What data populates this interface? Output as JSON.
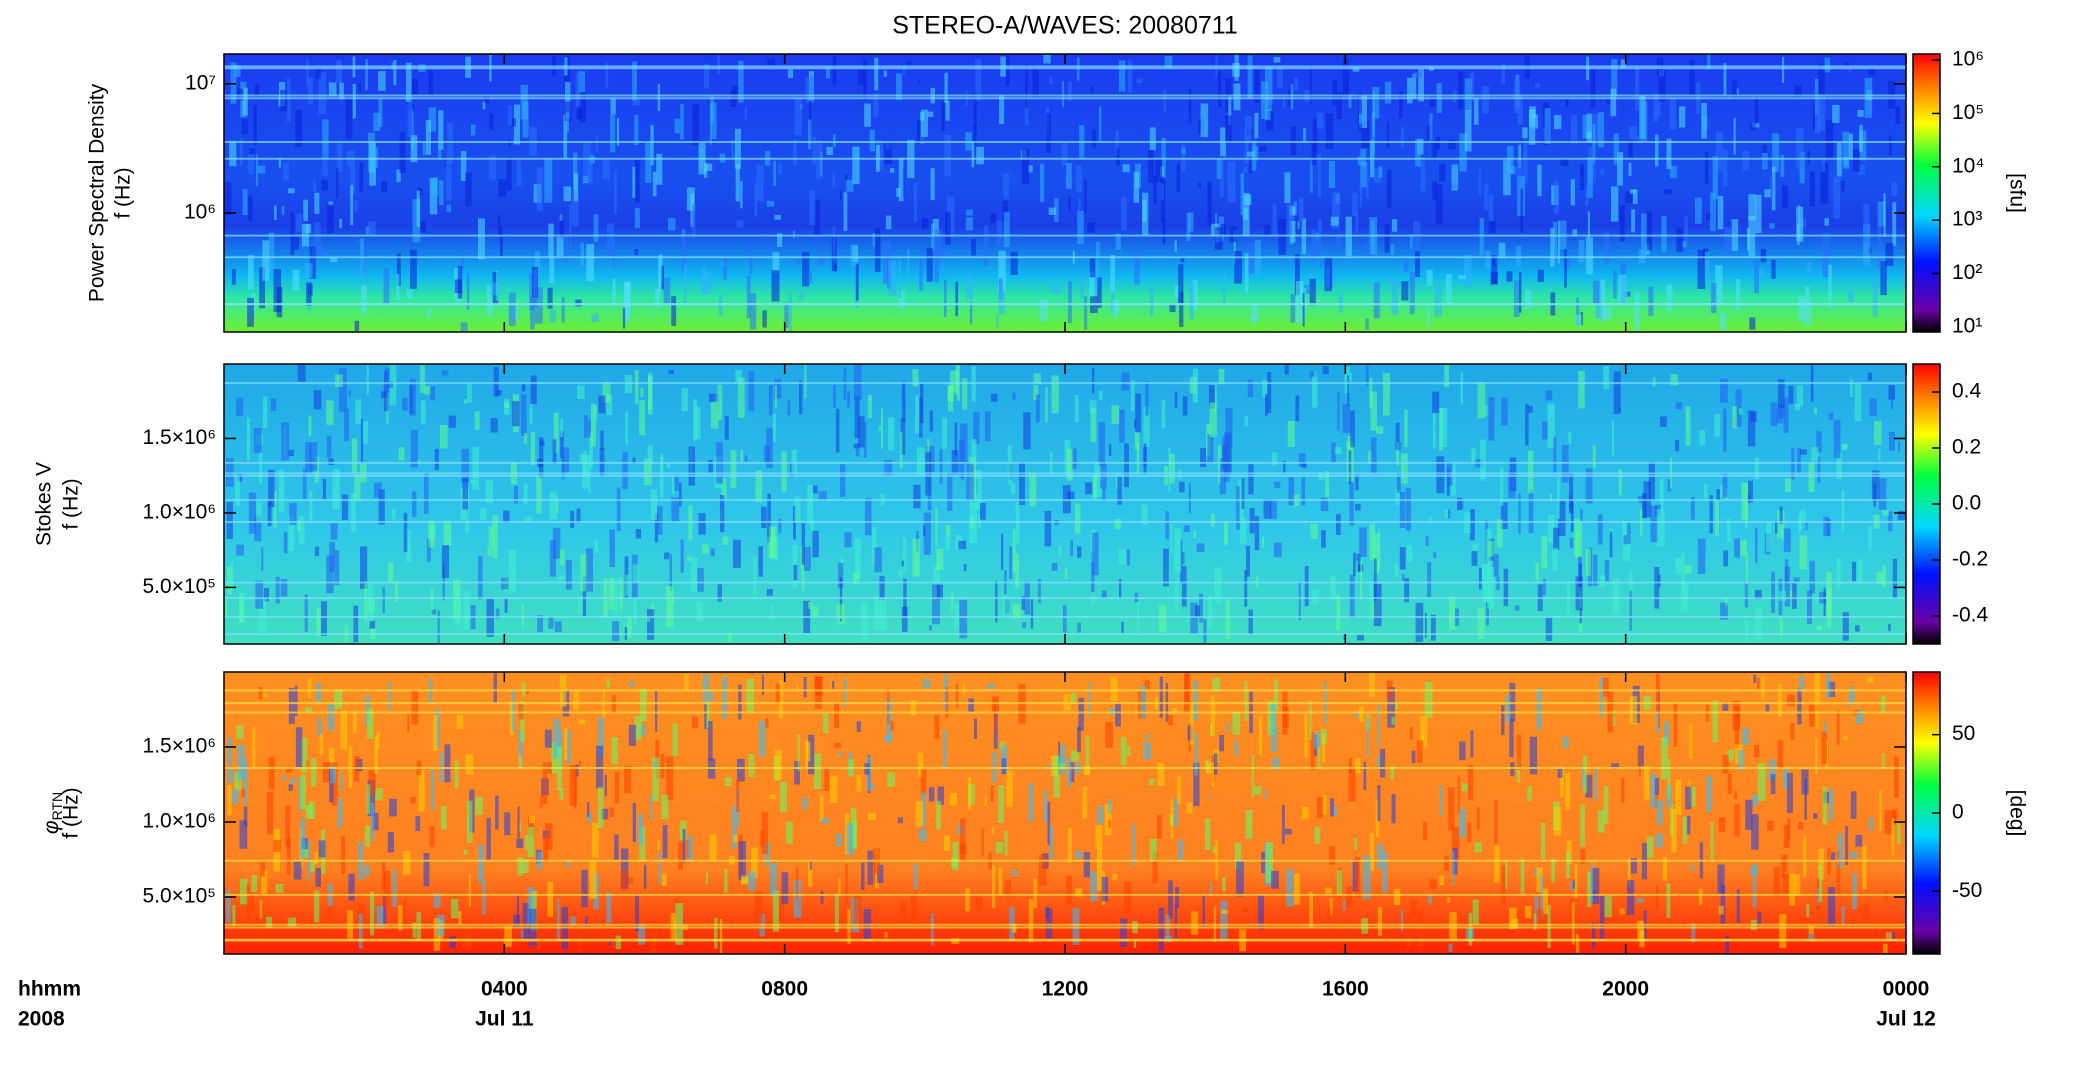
{
  "chart_data": [
    {
      "type": "spectrogram",
      "title": "STEREO-A/WAVES: 20080711",
      "ylabel": "Power Spectral Density",
      "yunit": "f (Hz)",
      "log_y": true,
      "ylim": [
        120000,
        17000000
      ],
      "yticks": [
        {
          "value": 1000000,
          "label": "10⁶"
        },
        {
          "value": 10000000,
          "label": "10⁷"
        }
      ],
      "xlim": [
        0,
        24
      ],
      "colormap": "rainbow",
      "log_color": true,
      "clim": [
        8,
        1300000
      ],
      "cticks": [
        {
          "value": 10,
          "label": "10¹"
        },
        {
          "value": 100,
          "label": "10²"
        },
        {
          "value": 1000,
          "label": "10³"
        },
        {
          "value": 10000,
          "label": "10⁴"
        },
        {
          "value": 100000,
          "label": "10⁵"
        },
        {
          "value": 1000000,
          "label": "10⁶"
        }
      ],
      "clabel": "[sfu]"
    },
    {
      "type": "spectrogram",
      "ylabel": "Stokes V",
      "yunit": "f (Hz)",
      "log_y": false,
      "ylim": [
        120000,
        2000000
      ],
      "yticks": [
        {
          "value": 500000,
          "label": "5.0×10⁵"
        },
        {
          "value": 1000000,
          "label": "1.0×10⁶"
        },
        {
          "value": 1500000,
          "label": "1.5×10⁶"
        }
      ],
      "xlim": [
        0,
        24
      ],
      "colormap": "rainbow",
      "log_color": false,
      "clim": [
        -0.5,
        0.5
      ],
      "cticks": [
        {
          "value": -0.4,
          "label": "-0.4"
        },
        {
          "value": -0.2,
          "label": "-0.2"
        },
        {
          "value": 0,
          "label": "0.0"
        },
        {
          "value": 0.2,
          "label": "0.2"
        },
        {
          "value": 0.4,
          "label": "0.4"
        }
      ]
    },
    {
      "type": "spectrogram",
      "ylabel": "φ",
      "ylabel_subscript": "RTN",
      "yunit": "f (Hz)",
      "log_y": false,
      "ylim": [
        120000,
        2000000
      ],
      "yticks": [
        {
          "value": 500000,
          "label": "5.0×10⁵"
        },
        {
          "value": 1000000,
          "label": "1.0×10⁶"
        },
        {
          "value": 1500000,
          "label": "1.5×10⁶"
        }
      ],
      "xlim": [
        0,
        24
      ],
      "xticks": [
        {
          "value": 4,
          "label": "0400"
        },
        {
          "value": 8,
          "label": "0800"
        },
        {
          "value": 12,
          "label": "1200"
        },
        {
          "value": 16,
          "label": "1600"
        },
        {
          "value": 20,
          "label": "2000"
        },
        {
          "value": 24,
          "label": "0000"
        }
      ],
      "x_date_labels": [
        {
          "value": 4,
          "label": "Jul 11"
        },
        {
          "value": 24,
          "label": "Jul 12"
        }
      ],
      "x_label": "hhmm",
      "year_label": "2008",
      "colormap": "rainbow",
      "log_color": false,
      "clim": [
        -90,
        90
      ],
      "cticks": [
        -50,
        0,
        50
      ],
      "clabel": "[deg]"
    }
  ]
}
